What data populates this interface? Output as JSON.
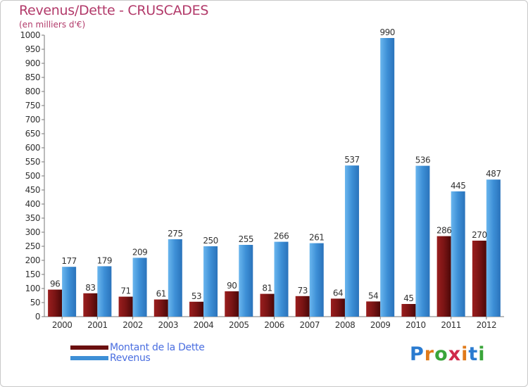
{
  "title": "Revenus/Dette - CRUSCADES",
  "subtitle": "(en milliers d'€)",
  "chart_data": {
    "type": "bar",
    "categories": [
      "2000",
      "2001",
      "2002",
      "2003",
      "2004",
      "2005",
      "2006",
      "2007",
      "2008",
      "2009",
      "2010",
      "2011",
      "2012"
    ],
    "series": [
      {
        "name": "Montant de la Dette",
        "color": "#6b0f0f",
        "values": [
          96,
          83,
          71,
          61,
          53,
          90,
          81,
          73,
          64,
          54,
          45,
          286,
          270
        ]
      },
      {
        "name": "Revenus",
        "color": "#3d8fd6",
        "values": [
          177,
          179,
          209,
          275,
          250,
          255,
          266,
          261,
          537,
          990,
          536,
          445,
          487
        ]
      }
    ],
    "ylim": [
      0,
      1000
    ],
    "yticks": [
      0,
      50,
      100,
      150,
      200,
      250,
      300,
      350,
      400,
      450,
      500,
      550,
      600,
      650,
      700,
      750,
      800,
      850,
      900,
      950,
      1000
    ],
    "grid": false,
    "legend_position": "bottom-left"
  },
  "legend": {
    "items": [
      {
        "label": "Montant de la Dette",
        "color": "#6b0f0f"
      },
      {
        "label": "Revenus",
        "color": "#3d8fd6"
      }
    ]
  },
  "logo": {
    "letters": [
      "P",
      "r",
      "o",
      "x",
      "i",
      "t",
      "i"
    ],
    "colors": [
      "#2a7bd0",
      "#e07a1a",
      "#3aa53a",
      "#d02a4a",
      "#e07a1a",
      "#2a7bd0",
      "#3aa53a"
    ]
  }
}
